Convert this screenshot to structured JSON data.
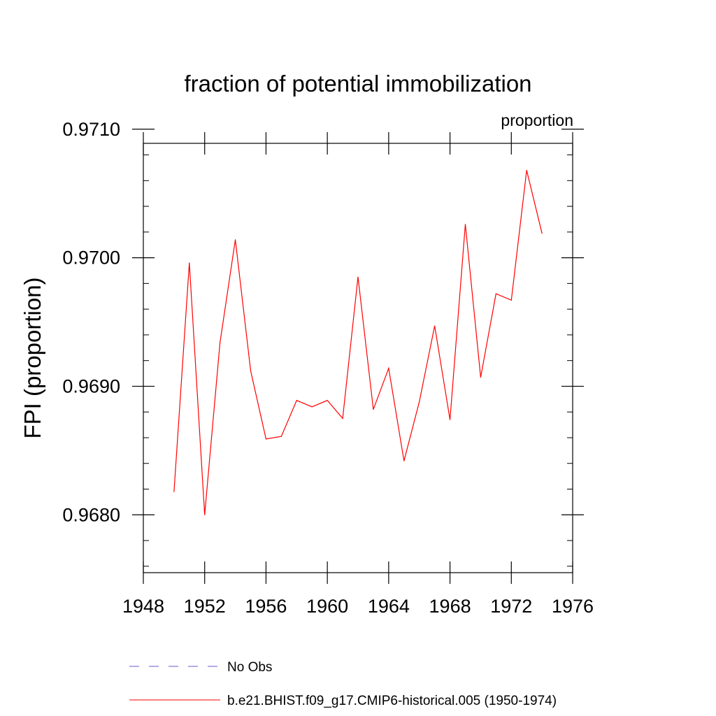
{
  "chart_data": {
    "type": "line",
    "title": "fraction of potential immobilization",
    "units_label": "proportion",
    "xlabel": "",
    "ylabel": "FPI  (proportion)",
    "xlim": [
      1948,
      1976
    ],
    "ylim": [
      0.96755,
      0.97089
    ],
    "xticks": [
      1948,
      1952,
      1956,
      1960,
      1964,
      1968,
      1972,
      1976
    ],
    "xtick_labels": [
      "1948",
      "1952",
      "1956",
      "1960",
      "1964",
      "1968",
      "1972",
      "1976"
    ],
    "yticks": [
      0.968,
      0.969,
      0.97,
      0.971
    ],
    "ytick_labels": [
      "0.9680",
      "0.9690",
      "0.9700",
      "0.9710"
    ],
    "y_minor_step": 0.0002,
    "x_minor_step": 1,
    "legend_position": "bottom",
    "series": [
      {
        "name": "No Obs",
        "color": "#6a5acd",
        "style": "dashed",
        "x": [],
        "values": []
      },
      {
        "name": "b.e21.BHIST.f09_g17.CMIP6-historical.005 (1950-1974)",
        "color": "#ff0000",
        "style": "solid",
        "x": [
          1950,
          1951,
          1952,
          1953,
          1954,
          1955,
          1956,
          1957,
          1958,
          1959,
          1960,
          1961,
          1962,
          1963,
          1964,
          1965,
          1966,
          1967,
          1968,
          1969,
          1970,
          1971,
          1972,
          1973,
          1974
        ],
        "values": [
          0.96818,
          0.96996,
          0.968,
          0.96934,
          0.97014,
          0.96912,
          0.96859,
          0.96861,
          0.96889,
          0.96884,
          0.96889,
          0.96875,
          0.96985,
          0.96882,
          0.96914,
          0.96842,
          0.96888,
          0.96947,
          0.96874,
          0.97026,
          0.96907,
          0.96972,
          0.96967,
          0.97068,
          0.97019
        ]
      }
    ]
  }
}
